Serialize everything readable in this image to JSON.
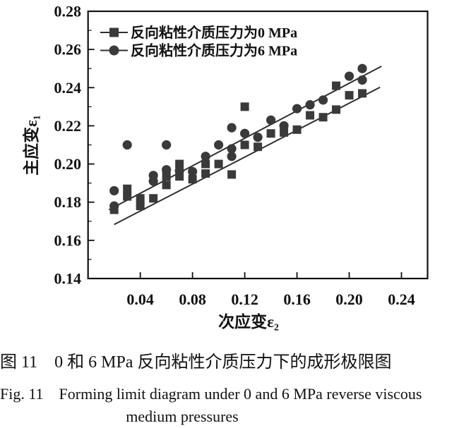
{
  "figure": {
    "caption_zh": "图 11　0 和 6 MPa 反向粘性介质压力下的成形极限图",
    "caption_en_line1": "Fig. 11　Forming limit diagram under 0 and 6 MPa reverse viscous",
    "caption_en_line2": "medium pressures"
  },
  "chart_data": {
    "type": "scatter",
    "title": "",
    "xlabel": "次应变ε₂",
    "ylabel": "主应变ε₁",
    "xlim": [
      0,
      0.26
    ],
    "ylim": [
      0.14,
      0.28
    ],
    "x_ticks": [
      0.04,
      0.08,
      0.12,
      0.16,
      0.2,
      0.24
    ],
    "y_major_ticks": [
      0.14,
      0.16,
      0.18,
      0.2,
      0.22,
      0.24,
      0.26,
      0.28
    ],
    "y_minor_step": 0.01,
    "grid": false,
    "legend_position": "top-left-inside",
    "colors": {
      "marker": "#3a3a3a",
      "trendline": "#2f2f2f",
      "axis": "#111111"
    },
    "series": [
      {
        "id": "0mpa",
        "name": "反向粘性介质压力为0 MPa",
        "marker": "square",
        "points": [
          [
            0.02,
            0.176
          ],
          [
            0.03,
            0.187
          ],
          [
            0.03,
            0.183
          ],
          [
            0.04,
            0.182
          ],
          [
            0.04,
            0.178
          ],
          [
            0.05,
            0.182
          ],
          [
            0.06,
            0.1935
          ],
          [
            0.06,
            0.189
          ],
          [
            0.07,
            0.2
          ],
          [
            0.07,
            0.1935
          ],
          [
            0.08,
            0.192
          ],
          [
            0.09,
            0.2
          ],
          [
            0.09,
            0.195
          ],
          [
            0.1,
            0.2
          ],
          [
            0.11,
            0.1945
          ],
          [
            0.12,
            0.23
          ],
          [
            0.12,
            0.21
          ],
          [
            0.13,
            0.209
          ],
          [
            0.14,
            0.216
          ],
          [
            0.15,
            0.2165
          ],
          [
            0.16,
            0.218
          ],
          [
            0.17,
            0.2255
          ],
          [
            0.18,
            0.2245
          ],
          [
            0.19,
            0.2285
          ],
          [
            0.19,
            0.241
          ],
          [
            0.2,
            0.236
          ],
          [
            0.21,
            0.237
          ]
        ],
        "trendline": [
          [
            0.02,
            0.1683
          ],
          [
            0.2236,
            0.2402
          ]
        ]
      },
      {
        "id": "6mpa",
        "name": "反向粘性介质压力为6 MPa",
        "marker": "circle",
        "points": [
          [
            0.02,
            0.186
          ],
          [
            0.02,
            0.178
          ],
          [
            0.03,
            0.21
          ],
          [
            0.05,
            0.194
          ],
          [
            0.05,
            0.191
          ],
          [
            0.06,
            0.21
          ],
          [
            0.06,
            0.197
          ],
          [
            0.07,
            0.1965
          ],
          [
            0.08,
            0.196
          ],
          [
            0.09,
            0.204
          ],
          [
            0.1,
            0.21
          ],
          [
            0.11,
            0.219
          ],
          [
            0.11,
            0.208
          ],
          [
            0.11,
            0.204
          ],
          [
            0.12,
            0.216
          ],
          [
            0.13,
            0.214
          ],
          [
            0.14,
            0.223
          ],
          [
            0.15,
            0.22
          ],
          [
            0.16,
            0.229
          ],
          [
            0.17,
            0.231
          ],
          [
            0.18,
            0.2335
          ],
          [
            0.2,
            0.246
          ],
          [
            0.21,
            0.25
          ],
          [
            0.21,
            0.244
          ]
        ],
        "trendline": [
          [
            0.016,
            0.176
          ],
          [
            0.2247,
            0.2512
          ]
        ]
      }
    ]
  }
}
